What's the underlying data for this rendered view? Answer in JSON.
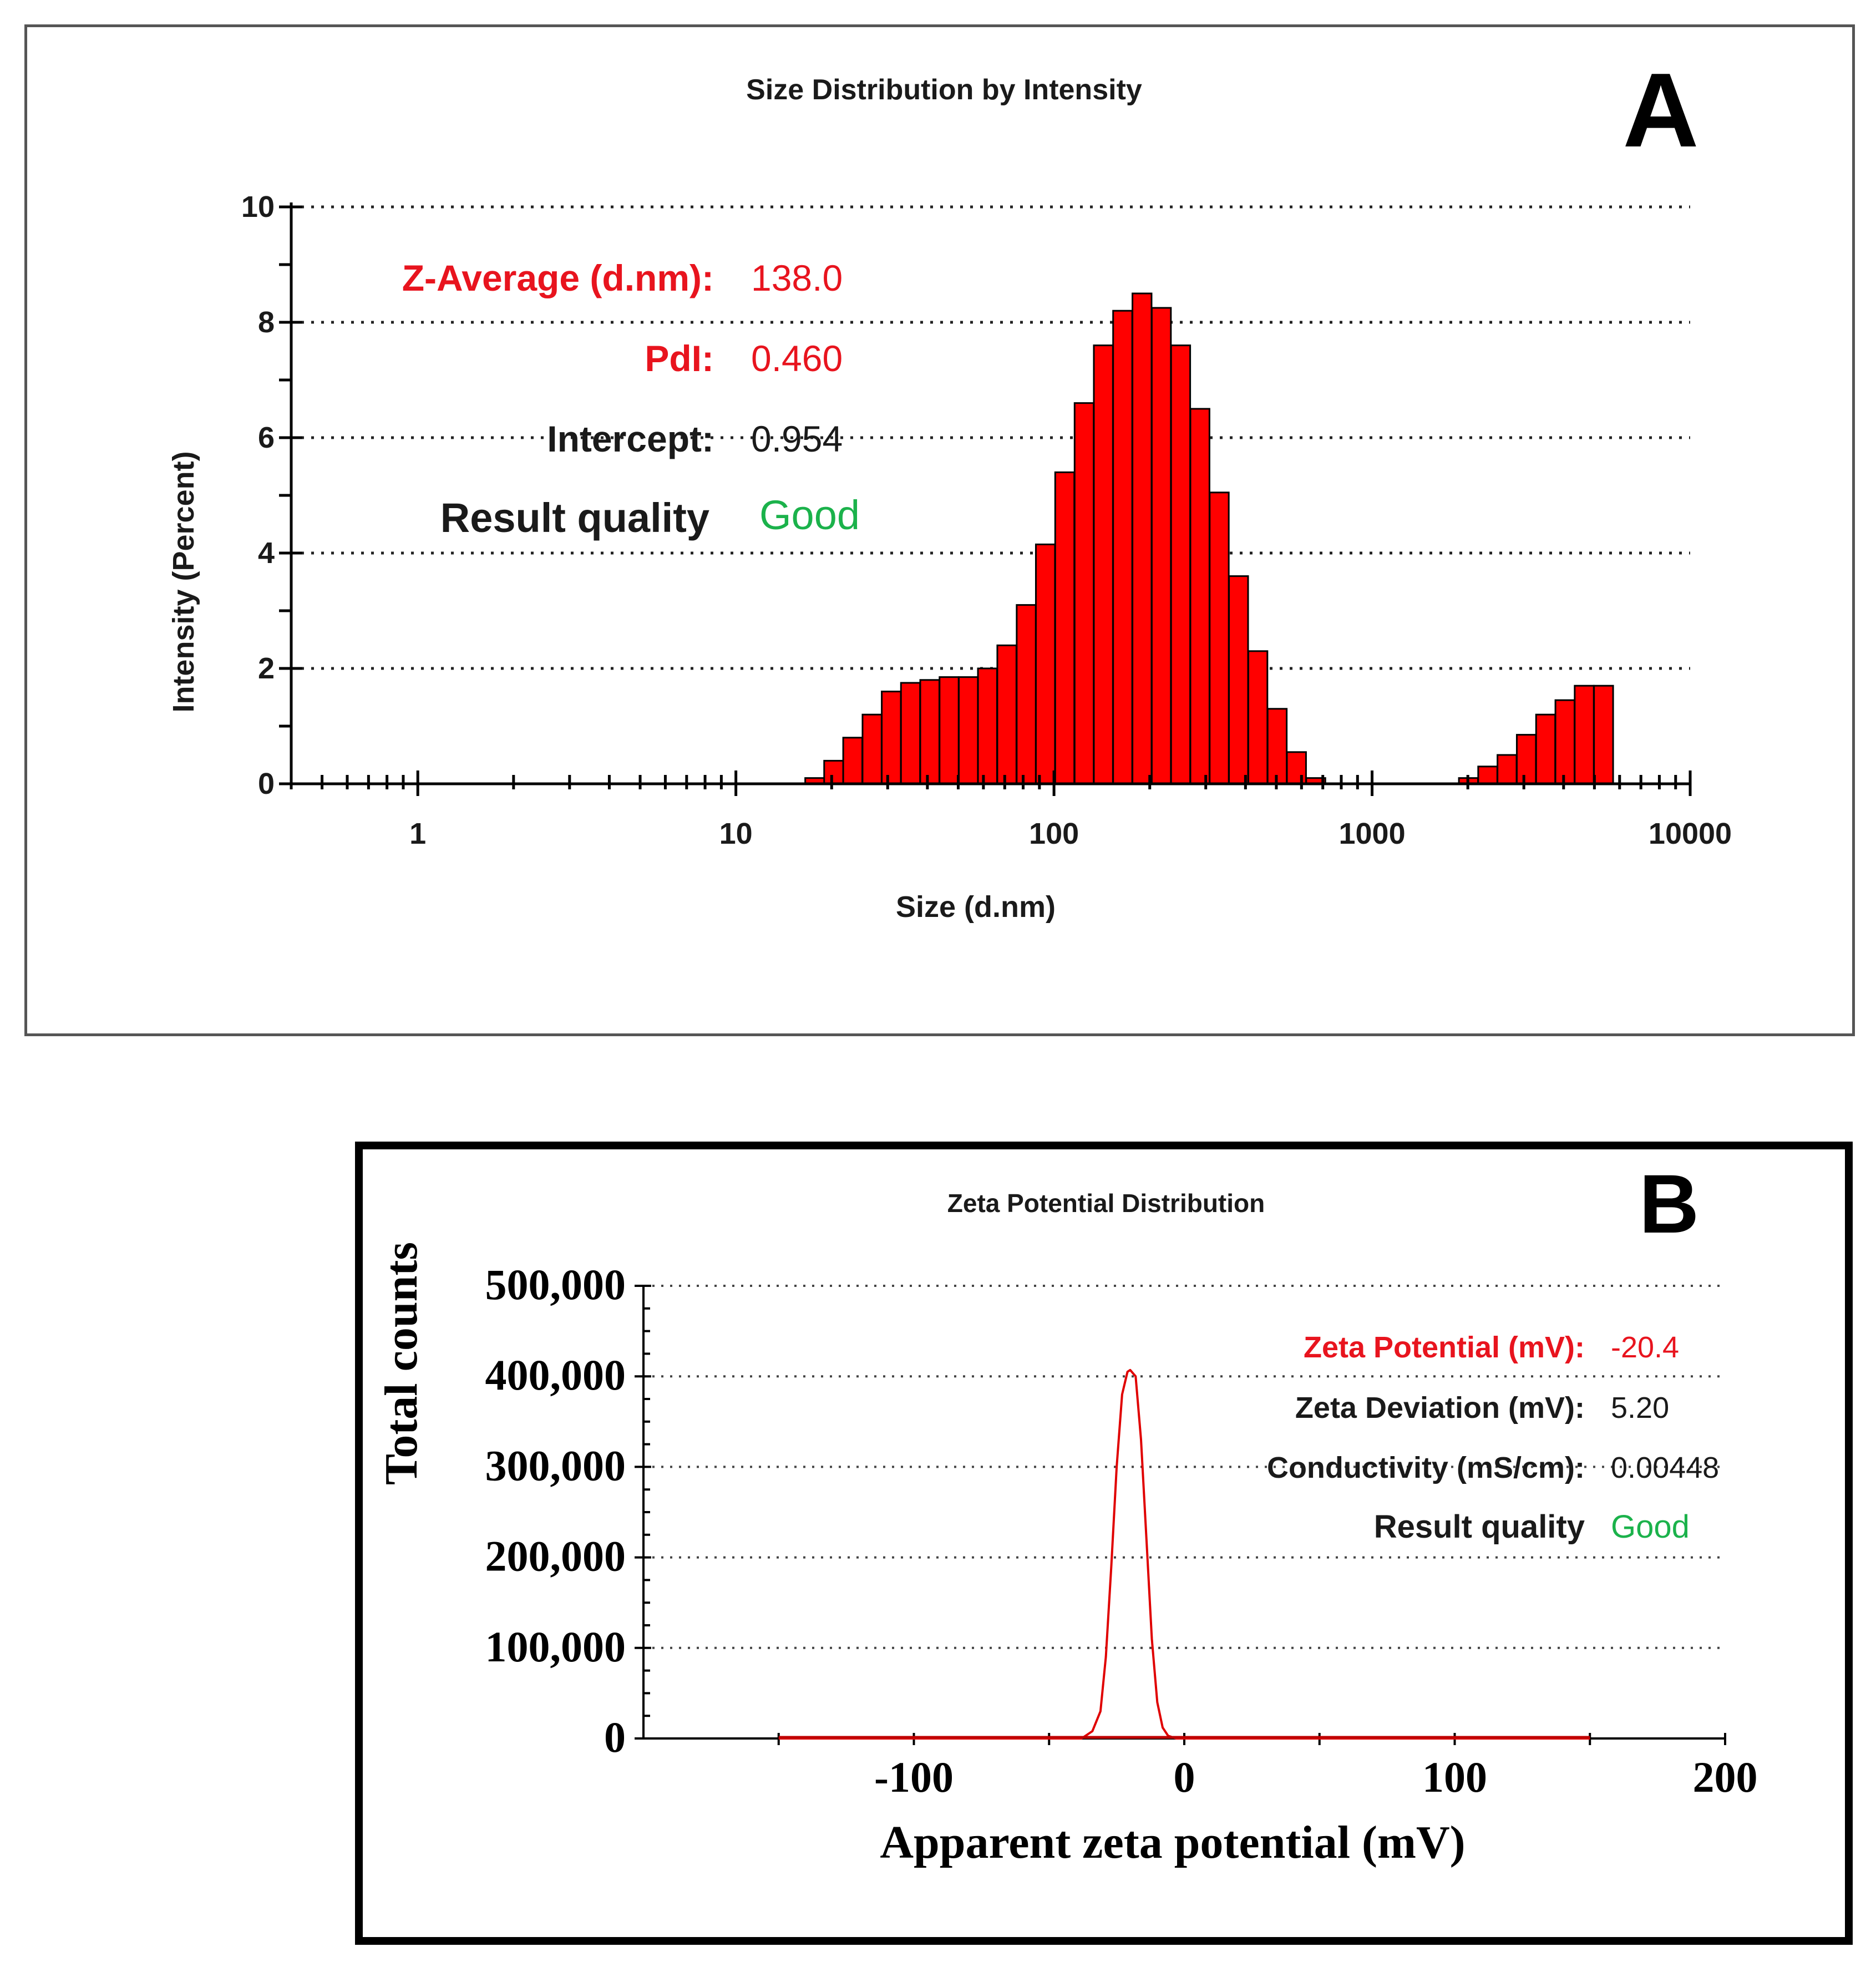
{
  "chart_data": [
    {
      "panel_letter": "A",
      "type": "bar",
      "title": "Size Distribution by Intensity",
      "xlabel": "Size (d.nm)",
      "ylabel": "Intensity (Percent)",
      "x_scale": "log",
      "xlim": [
        0.4,
        10000
      ],
      "ylim": [
        0,
        10
      ],
      "xticks": [
        "1",
        "10",
        "100",
        "1000",
        "10000"
      ],
      "yticks": [
        "0",
        "2",
        "4",
        "6",
        "8",
        "10"
      ],
      "grid": "dotted horizontal",
      "bar_color": "#ff0000",
      "series": [
        {
          "x": [
            17.7,
            20.3,
            23.3,
            26.8,
            30.8,
            35.4,
            40.7,
            46.8,
            53.8,
            61.8,
            71.1,
            81.8,
            94.0,
            108.1,
            124.4,
            143.0,
            164.4,
            189.1,
            217.5,
            250.1,
            287.6,
            330.7,
            380.3,
            437.4,
            503.0,
            578.5,
            665.2,
            2009.0,
            2310.0,
            2656.0,
            3055.0,
            3513.0,
            4040.0,
            4645.0,
            5342.0
          ],
          "values": [
            0.1,
            0.4,
            0.8,
            1.2,
            1.6,
            1.75,
            1.8,
            1.85,
            1.85,
            2.0,
            2.4,
            3.1,
            4.15,
            5.4,
            6.6,
            7.6,
            8.2,
            8.5,
            8.25,
            7.6,
            6.5,
            5.05,
            3.6,
            2.3,
            1.3,
            0.55,
            0.1,
            0.1,
            0.3,
            0.5,
            0.85,
            1.2,
            1.45,
            1.7,
            1.7
          ]
        }
      ],
      "annotations": [
        {
          "label": "Z-Average (d.nm):",
          "value": "138.0"
        },
        {
          "label": "PdI:",
          "value": "0.460"
        },
        {
          "label": "Intercept:",
          "value": "0.954"
        },
        {
          "label": "Result quality",
          "value": "Good"
        }
      ]
    },
    {
      "panel_letter": "B",
      "type": "line",
      "title": "Zeta Potential Distribution",
      "xlabel": "Apparent zeta potential (mV)",
      "ylabel": "Total counts",
      "xlim": [
        -200,
        200
      ],
      "ylim": [
        0,
        500000
      ],
      "xticks": [
        "-100",
        "0",
        "100",
        "200"
      ],
      "yticks": [
        "0",
        "100,000",
        "200,000",
        "300,000",
        "400,000",
        "500,000"
      ],
      "grid": "dotted horizontal",
      "line_color": "#e00000",
      "series": [
        {
          "x": [
            -150,
            -38,
            -34,
            -31,
            -29,
            -27,
            -25,
            -23,
            -21,
            -20,
            -18,
            -16,
            -14,
            -12,
            -10,
            -8,
            -6,
            -3,
            150
          ],
          "values": [
            0,
            0,
            8000,
            30000,
            90000,
            190000,
            300000,
            380000,
            405000,
            407000,
            400000,
            330000,
            220000,
            110000,
            40000,
            12000,
            3000,
            0,
            0
          ]
        }
      ],
      "annotations": [
        {
          "label": "Zeta Potential (mV):",
          "value": "-20.4"
        },
        {
          "label": "Zeta Deviation (mV):",
          "value": "5.20"
        },
        {
          "label": "Conductivity (mS/cm):",
          "value": "0.00448"
        },
        {
          "label": "Result quality",
          "value": "Good"
        }
      ]
    }
  ],
  "colors": {
    "highlight_red": "#e8141e",
    "good_green": "#1bb24b",
    "text_dark": "#1a1a1a"
  }
}
